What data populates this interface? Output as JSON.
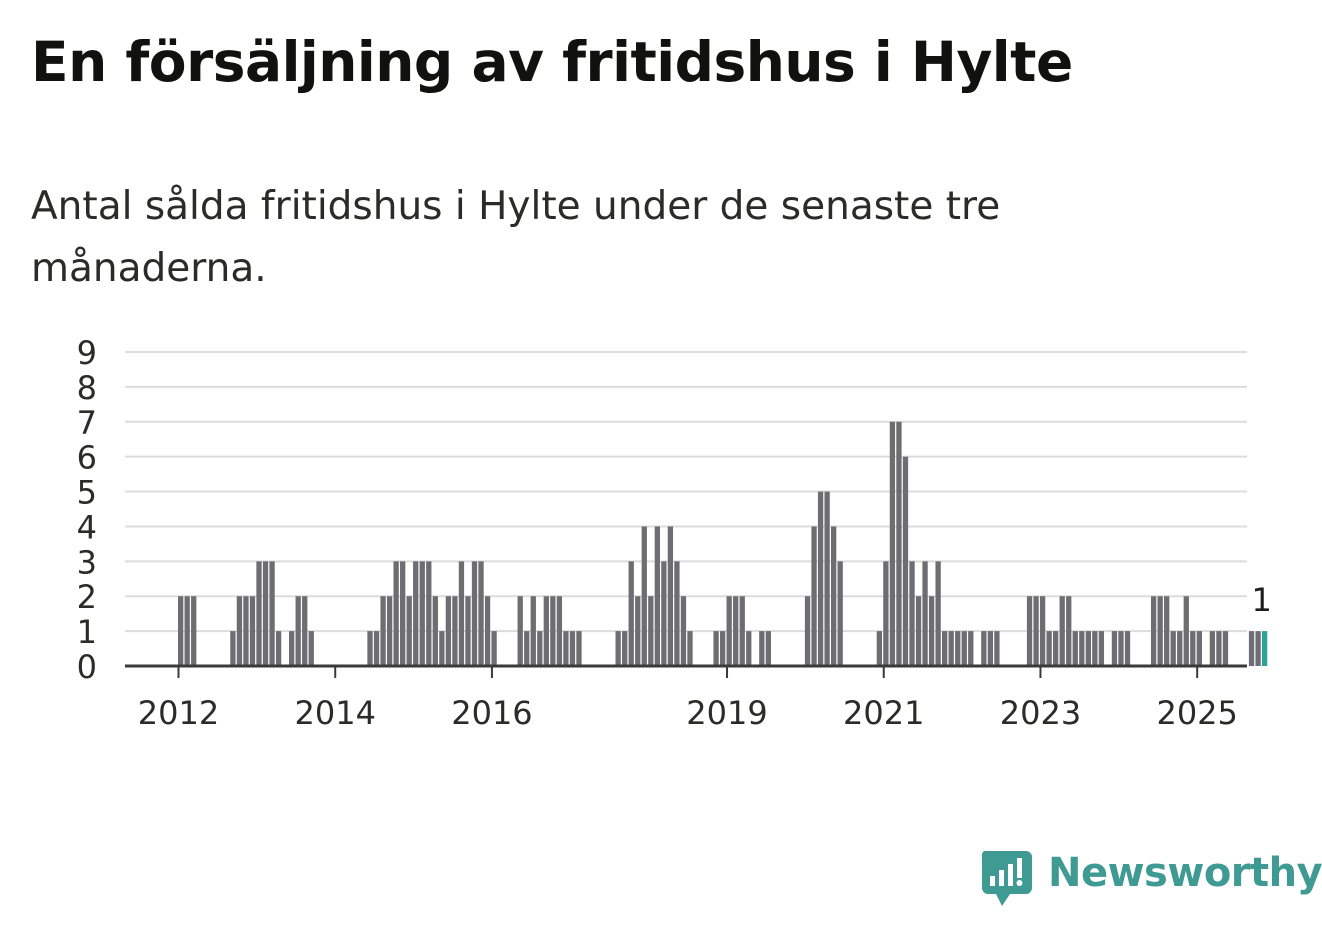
{
  "title": "En försäljning av fritidshus i Hylte",
  "subtitle": "Antal sålda fritidshus i Hylte under de senaste tre månaderna.",
  "brand": {
    "name": "Newsworthy",
    "icon": "newsworthy-logo-icon",
    "color": "#3f9a94"
  },
  "chart_data": {
    "type": "bar",
    "y_ticks": [
      "0",
      "1",
      "2",
      "3",
      "4",
      "5",
      "6",
      "7",
      "8",
      "9"
    ],
    "ylim": [
      0,
      9
    ],
    "grid": true,
    "x_tick_labels": [
      "2012",
      "2014",
      "2016",
      "2019",
      "2021",
      "2023",
      "2025"
    ],
    "bar_color": "#6e6d72",
    "highlight_color": "#2aa39a",
    "highlight_label": "1",
    "series": [
      {
        "values": [
          2,
          2,
          2,
          0,
          0,
          0,
          0,
          0,
          1,
          2,
          2,
          2,
          3,
          3,
          3,
          1,
          0,
          1,
          2,
          2,
          1,
          0,
          0,
          0,
          0,
          0,
          0,
          0,
          0,
          1,
          1,
          2,
          2,
          3,
          3,
          2,
          3,
          3,
          3,
          2,
          1,
          2,
          2,
          3,
          2,
          3,
          3,
          2,
          1,
          0,
          0,
          0,
          2,
          1,
          2,
          1,
          2,
          2,
          2,
          1,
          1,
          1,
          0,
          0,
          0,
          0,
          0,
          1,
          1,
          3,
          2,
          4,
          2,
          4,
          3,
          4,
          3,
          2,
          1,
          0,
          0,
          0,
          1,
          1,
          2,
          2,
          2,
          1,
          0,
          1,
          1,
          0,
          0,
          0,
          0,
          0,
          2,
          4,
          5,
          5,
          4,
          3,
          0,
          0,
          0,
          0,
          0,
          1,
          3,
          7,
          7,
          6,
          3,
          2,
          3,
          2,
          3,
          1,
          1,
          1,
          1,
          1,
          0,
          1,
          1,
          1,
          0,
          0,
          0,
          0,
          2,
          2,
          2,
          1,
          1,
          2,
          2,
          1,
          1,
          1,
          1,
          1,
          0,
          1,
          1,
          1,
          0,
          0,
          0,
          2,
          2,
          2,
          1,
          1,
          2,
          1,
          1,
          0,
          1,
          1,
          1,
          0,
          0,
          0,
          1,
          1,
          1
        ]
      }
    ]
  }
}
